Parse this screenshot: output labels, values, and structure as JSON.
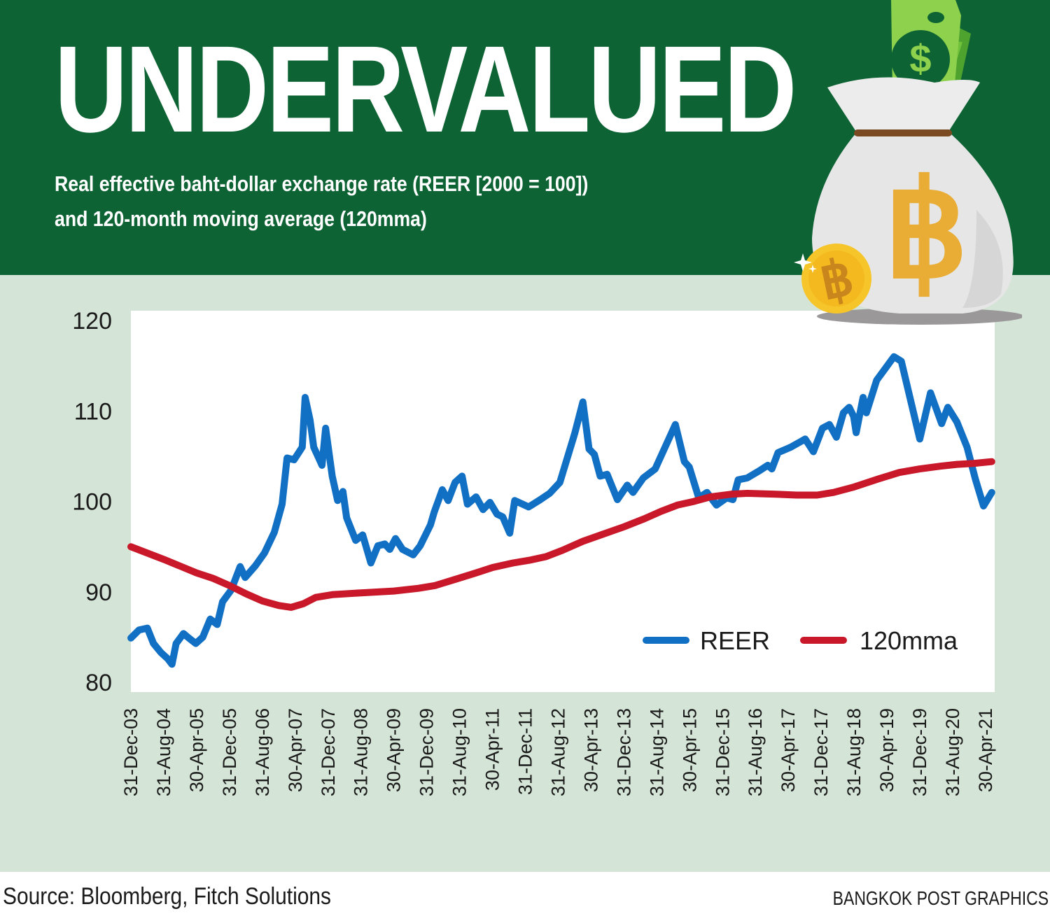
{
  "header": {
    "title": "UNDERVALUED",
    "subtitle_line1": "Real effective baht-dollar exchange rate (REER [2000 = 100])",
    "subtitle_line2": "and 120-month moving average (120mma)"
  },
  "illustration": {
    "bill_icon": "dollar-bill-icon",
    "bag_icon": "money-bag-baht-icon",
    "coin_icon": "baht-coin-icon",
    "bill_symbol": "$",
    "bag_symbol": "฿",
    "coin_symbol": "฿"
  },
  "footer": {
    "source": "Source: Bloomberg, Fitch Solutions",
    "credit": "BANGKOK POST GRAPHICS"
  },
  "colors": {
    "header_bg": "#0d6333",
    "panel_bg": "#d4e4d6",
    "reer": "#1270c4",
    "mma": "#c8182a"
  },
  "chart_data": {
    "type": "line",
    "title": "Real effective baht-dollar exchange rate (REER [2000 = 100]) and 120-month moving average (120mma)",
    "xlabel": "",
    "ylabel": "",
    "x_units": "months since 31-Dec-03",
    "xlim": [
      0,
      210
    ],
    "ylim": [
      80,
      120
    ],
    "yticks": [
      120,
      110,
      100,
      90,
      80
    ],
    "grid": false,
    "legend_position": "bottom-right",
    "x_tick_step_months": 8,
    "x_tick_labels": [
      "31-Dec-03",
      "31-Aug-04",
      "30-Apr-05",
      "31-Dec-05",
      "31-Aug-06",
      "30-Apr-07",
      "31-Dec-07",
      "31-Aug-08",
      "30-Apr-09",
      "31-Dec-09",
      "31-Aug-10",
      "30-Apr-11",
      "31-Dec-11",
      "31-Aug-12",
      "30-Apr-13",
      "31-Dec-13",
      "31-Aug-14",
      "30-Apr-15",
      "31-Dec-15",
      "31-Aug-16",
      "30-Apr-17",
      "31-Dec-17",
      "31-Aug-18",
      "30-Apr-19",
      "31-Dec-19",
      "31-Aug-20",
      "30-Apr-21"
    ],
    "series": [
      {
        "name": "REER",
        "points": [
          [
            0,
            84.9
          ],
          [
            2,
            85.8
          ],
          [
            4,
            86.0
          ],
          [
            5.5,
            84.3
          ],
          [
            7.3,
            83.3
          ],
          [
            9,
            82.6
          ],
          [
            10,
            82.0
          ],
          [
            11,
            84.3
          ],
          [
            12.8,
            85.4
          ],
          [
            14.1,
            84.9
          ],
          [
            15.8,
            84.3
          ],
          [
            17.5,
            85.0
          ],
          [
            19.3,
            87.0
          ],
          [
            21,
            86.4
          ],
          [
            22.3,
            88.9
          ],
          [
            24.4,
            90.2
          ],
          [
            26.6,
            92.8
          ],
          [
            27.8,
            91.6
          ],
          [
            30.3,
            92.9
          ],
          [
            32.5,
            94.3
          ],
          [
            34.9,
            96.6
          ],
          [
            36.8,
            99.7
          ],
          [
            38,
            104.8
          ],
          [
            39.7,
            104.6
          ],
          [
            41.7,
            106.0
          ],
          [
            42.4,
            111.5
          ],
          [
            43.6,
            109.0
          ],
          [
            44.5,
            106.0
          ],
          [
            45.7,
            104.8
          ],
          [
            46.5,
            104.0
          ],
          [
            47.4,
            108.1
          ],
          [
            49,
            102.8
          ],
          [
            50.3,
            100.1
          ],
          [
            51.6,
            101.1
          ],
          [
            52.5,
            98.2
          ],
          [
            54.7,
            95.7
          ],
          [
            56.4,
            96.3
          ],
          [
            58.4,
            93.2
          ],
          [
            60.1,
            95.1
          ],
          [
            61.8,
            95.3
          ],
          [
            63,
            94.7
          ],
          [
            64.4,
            95.9
          ],
          [
            66.1,
            94.7
          ],
          [
            68.7,
            94.1
          ],
          [
            70.4,
            95.1
          ],
          [
            72.9,
            97.4
          ],
          [
            73.8,
            98.8
          ],
          [
            75.8,
            101.3
          ],
          [
            77.2,
            100.1
          ],
          [
            78.9,
            102.1
          ],
          [
            80.6,
            102.8
          ],
          [
            81.9,
            99.7
          ],
          [
            84,
            100.5
          ],
          [
            85.7,
            99.1
          ],
          [
            87.4,
            99.9
          ],
          [
            89.1,
            98.6
          ],
          [
            90.5,
            98.3
          ],
          [
            92.2,
            96.5
          ],
          [
            93.4,
            100.1
          ],
          [
            96.8,
            99.4
          ],
          [
            99.3,
            100.1
          ],
          [
            101.9,
            100.9
          ],
          [
            104.4,
            102.1
          ],
          [
            106,
            104.5
          ],
          [
            108,
            107.5
          ],
          [
            110,
            111.0
          ],
          [
            111.5,
            105.8
          ],
          [
            112.8,
            105.2
          ],
          [
            114.2,
            102.8
          ],
          [
            115.9,
            103.0
          ],
          [
            118.4,
            100.2
          ],
          [
            120.8,
            101.8
          ],
          [
            122.2,
            101.0
          ],
          [
            124.7,
            102.6
          ],
          [
            127.6,
            103.6
          ],
          [
            132.5,
            108.5
          ],
          [
            134.7,
            104.4
          ],
          [
            135.9,
            103.8
          ],
          [
            138.2,
            100.4
          ],
          [
            140.2,
            101.0
          ],
          [
            142.5,
            99.6
          ],
          [
            145,
            100.4
          ],
          [
            146.5,
            100.2
          ],
          [
            147.8,
            102.4
          ],
          [
            150,
            102.6
          ],
          [
            153,
            103.4
          ],
          [
            155,
            104.0
          ],
          [
            156,
            103.6
          ],
          [
            157.5,
            105.4
          ],
          [
            160.6,
            106.0
          ],
          [
            164.1,
            106.9
          ],
          [
            166.1,
            105.5
          ],
          [
            168.3,
            108.1
          ],
          [
            170,
            108.5
          ],
          [
            171.7,
            107.1
          ],
          [
            173.4,
            109.8
          ],
          [
            174.8,
            110.4
          ],
          [
            175.9,
            109.4
          ],
          [
            176.5,
            107.6
          ],
          [
            178.2,
            111.5
          ],
          [
            179,
            109.8
          ],
          [
            181.5,
            113.4
          ],
          [
            185.7,
            116.0
          ],
          [
            187.5,
            115.5
          ],
          [
            192,
            106.9
          ],
          [
            194.6,
            112.0
          ],
          [
            197.3,
            108.6
          ],
          [
            198.8,
            110.4
          ],
          [
            201,
            108.8
          ],
          [
            203.5,
            106.0
          ],
          [
            205.5,
            102.5
          ],
          [
            207.5,
            99.5
          ],
          [
            209.5,
            101.0
          ]
        ]
      },
      {
        "name": "120mma",
        "points": [
          [
            0,
            95.0
          ],
          [
            8,
            93.6
          ],
          [
            16,
            92.1
          ],
          [
            20,
            91.5
          ],
          [
            24,
            90.7
          ],
          [
            28,
            89.8
          ],
          [
            32,
            89.0
          ],
          [
            36,
            88.5
          ],
          [
            39,
            88.3
          ],
          [
            42,
            88.7
          ],
          [
            45,
            89.4
          ],
          [
            49,
            89.7
          ],
          [
            56,
            89.9
          ],
          [
            64,
            90.1
          ],
          [
            70,
            90.4
          ],
          [
            74,
            90.7
          ],
          [
            79,
            91.4
          ],
          [
            84,
            92.1
          ],
          [
            88,
            92.7
          ],
          [
            93,
            93.2
          ],
          [
            97,
            93.5
          ],
          [
            101,
            93.9
          ],
          [
            105,
            94.6
          ],
          [
            110,
            95.6
          ],
          [
            115,
            96.4
          ],
          [
            120,
            97.2
          ],
          [
            125,
            98.1
          ],
          [
            129,
            98.9
          ],
          [
            133,
            99.6
          ],
          [
            137,
            100.0
          ],
          [
            141,
            100.5
          ],
          [
            146,
            100.8
          ],
          [
            150,
            100.9
          ],
          [
            157,
            100.8
          ],
          [
            162,
            100.7
          ],
          [
            167,
            100.7
          ],
          [
            171,
            101.0
          ],
          [
            176,
            101.6
          ],
          [
            182,
            102.5
          ],
          [
            187,
            103.2
          ],
          [
            192,
            103.6
          ],
          [
            197,
            103.9
          ],
          [
            201,
            104.1
          ],
          [
            205,
            104.2
          ],
          [
            209.5,
            104.4
          ]
        ]
      }
    ]
  }
}
